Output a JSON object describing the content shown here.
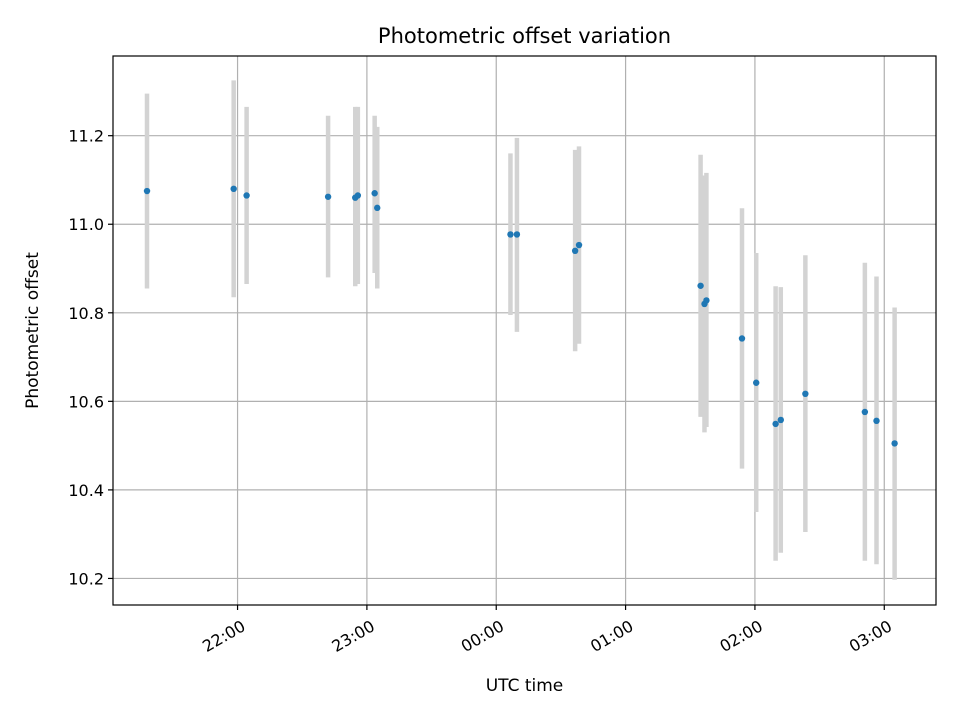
{
  "chart_data": {
    "type": "scatter",
    "title": "Photometric offset variation",
    "xlabel": "UTC time",
    "ylabel": "Photometric offset",
    "x_unit": "UTC hours (values above 24 are after midnight)",
    "xlim": [
      21.037,
      27.4
    ],
    "ylim": [
      10.14,
      11.38
    ],
    "x_ticks": [
      {
        "value": 22,
        "label": "22:00"
      },
      {
        "value": 23,
        "label": "23:00"
      },
      {
        "value": 24,
        "label": "00:00"
      },
      {
        "value": 25,
        "label": "01:00"
      },
      {
        "value": 26,
        "label": "02:00"
      },
      {
        "value": 27,
        "label": "03:00"
      }
    ],
    "y_ticks": [
      10.2,
      10.4,
      10.6,
      10.8,
      11.0,
      11.2
    ],
    "grid": true,
    "colors": {
      "point": "#1f77b4",
      "errorbar": "#d3d3d3",
      "grid": "#b0b0b0"
    },
    "points": [
      {
        "x": 21.3,
        "y": 11.075,
        "ymin": 10.855,
        "ymax": 11.295
      },
      {
        "x": 21.97,
        "y": 11.08,
        "ymin": 10.835,
        "ymax": 11.325
      },
      {
        "x": 22.07,
        "y": 11.065,
        "ymin": 10.865,
        "ymax": 11.265
      },
      {
        "x": 22.7,
        "y": 11.062,
        "ymin": 10.88,
        "ymax": 11.245
      },
      {
        "x": 22.91,
        "y": 11.06,
        "ymin": 10.86,
        "ymax": 11.265
      },
      {
        "x": 22.93,
        "y": 11.065,
        "ymin": 10.865,
        "ymax": 11.265
      },
      {
        "x": 23.06,
        "y": 11.07,
        "ymin": 10.89,
        "ymax": 11.245
      },
      {
        "x": 23.08,
        "y": 11.037,
        "ymin": 10.855,
        "ymax": 11.22
      },
      {
        "x": 24.11,
        "y": 10.977,
        "ymin": 10.795,
        "ymax": 11.16
      },
      {
        "x": 24.16,
        "y": 10.977,
        "ymin": 10.757,
        "ymax": 11.195
      },
      {
        "x": 24.61,
        "y": 10.94,
        "ymin": 10.713,
        "ymax": 11.168
      },
      {
        "x": 24.64,
        "y": 10.953,
        "ymin": 10.73,
        "ymax": 11.176
      },
      {
        "x": 25.58,
        "y": 10.861,
        "ymin": 10.565,
        "ymax": 11.157
      },
      {
        "x": 25.61,
        "y": 10.82,
        "ymin": 10.53,
        "ymax": 11.11
      },
      {
        "x": 25.625,
        "y": 10.828,
        "ymin": 10.542,
        "ymax": 11.116
      },
      {
        "x": 25.9,
        "y": 10.742,
        "ymin": 10.448,
        "ymax": 11.036
      },
      {
        "x": 26.01,
        "y": 10.642,
        "ymin": 10.35,
        "ymax": 10.935
      },
      {
        "x": 26.16,
        "y": 10.549,
        "ymin": 10.24,
        "ymax": 10.86
      },
      {
        "x": 26.2,
        "y": 10.558,
        "ymin": 10.258,
        "ymax": 10.858
      },
      {
        "x": 26.39,
        "y": 10.617,
        "ymin": 10.305,
        "ymax": 10.93
      },
      {
        "x": 26.85,
        "y": 10.576,
        "ymin": 10.24,
        "ymax": 10.913
      },
      {
        "x": 26.94,
        "y": 10.556,
        "ymin": 10.232,
        "ymax": 10.882
      },
      {
        "x": 27.08,
        "y": 10.505,
        "ymin": 10.197,
        "ymax": 10.812
      }
    ]
  }
}
